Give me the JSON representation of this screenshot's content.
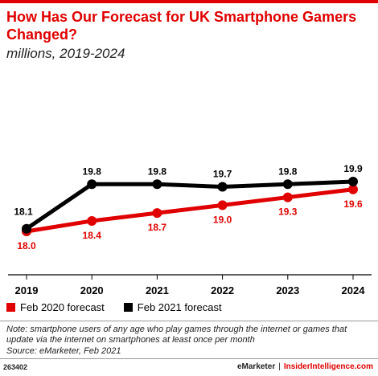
{
  "header": {
    "title": "How Has Our Forecast for UK Smartphone Gamers Changed?",
    "subtitle": "millions, 2019-2024"
  },
  "colors": {
    "accent": "#e00000",
    "series_black": "#000000"
  },
  "chart_data": {
    "type": "line",
    "title": "How Has Our Forecast for UK Smartphone Gamers Changed?",
    "subtitle": "millions, 2019-2024",
    "x": [
      "2019",
      "2020",
      "2021",
      "2022",
      "2023",
      "2024"
    ],
    "series": [
      {
        "name": "Feb 2020 forecast",
        "color": "#e00000",
        "values": [
          18.0,
          18.4,
          18.7,
          19.0,
          19.3,
          19.6
        ]
      },
      {
        "name": "Feb 2021 forecast",
        "color": "#000000",
        "values": [
          18.1,
          19.8,
          19.8,
          19.7,
          19.8,
          19.9
        ]
      }
    ],
    "value_labels": {
      "Feb 2020 forecast": [
        "18.0",
        "18.4",
        "18.7",
        "19.0",
        "19.3",
        "19.6"
      ],
      "Feb 2021 forecast": [
        "18.1",
        "19.8",
        "19.8",
        "19.7",
        "19.8",
        "19.9"
      ]
    },
    "grid": false,
    "legend": "bottom-left"
  },
  "legend": [
    {
      "label": "Feb 2020 forecast",
      "color": "#e00000"
    },
    {
      "label": "Feb 2021 forecast",
      "color": "#000000"
    }
  ],
  "footer": {
    "note": "Note: smartphone users of any age who play games through the internet or games that update via the internet on smartphones at least once per month",
    "source": "Source: eMarketer, Feb 2021",
    "id": "263402",
    "brand": "eMarketer",
    "separator": "|",
    "brand2": "InsiderIntelligence.com"
  }
}
